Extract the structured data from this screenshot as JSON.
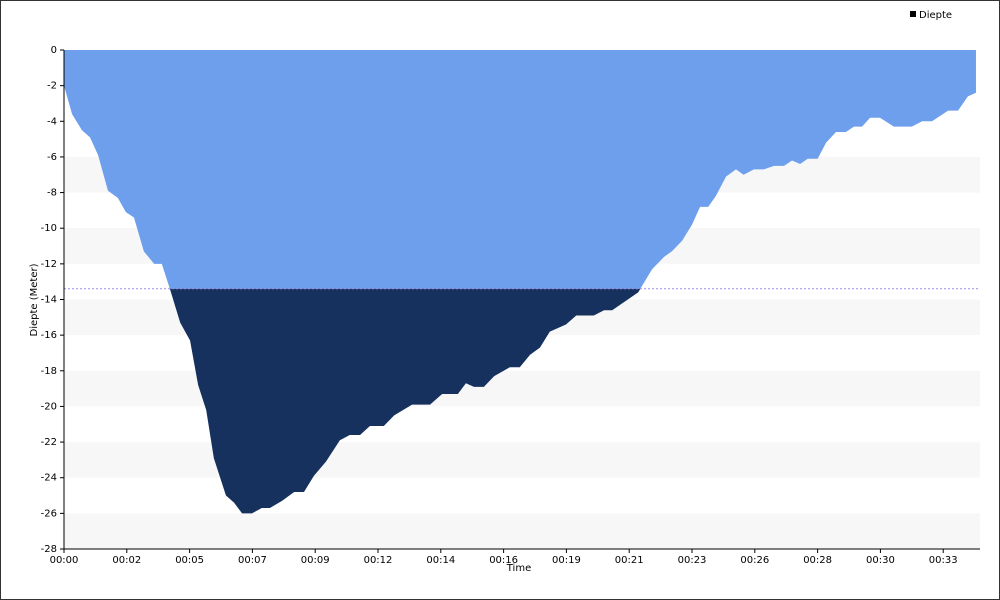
{
  "chart_data": {
    "type": "area",
    "x_label": "Time",
    "y_label": "Diepte (Meter)",
    "x": [
      0,
      18,
      40,
      58,
      76,
      98,
      120,
      138,
      156,
      178,
      201,
      218,
      236,
      259,
      281,
      299,
      317,
      334,
      361,
      379,
      397,
      419,
      441,
      459,
      486,
      513,
      535,
      557,
      584,
      615,
      637,
      660,
      682,
      713,
      736,
      776,
      816,
      843,
      878,
      896,
      914,
      936,
      959,
      994,
      1016,
      1039,
      1061,
      1083,
      1119,
      1142,
      1181,
      1204,
      1222,
      1280,
      1311,
      1338,
      1355,
      1378,
      1400,
      1418,
      1436,
      1453,
      1476,
      1498,
      1515,
      1538,
      1560,
      1583,
      1605,
      1623,
      1641,
      1658,
      1680,
      1699,
      1721,
      1743,
      1761,
      1779,
      1797,
      1819,
      1850,
      1890,
      1913,
      1935,
      1971,
      1993,
      2015,
      2033
    ],
    "series": [
      {
        "name": "Diepte",
        "color": "#6e9fec",
        "values": [
          -2,
          -3.6,
          -4.5,
          -4.9,
          -5.9,
          -7.9,
          -8.3,
          -9.1,
          -9.4,
          -11.3,
          -12,
          -12,
          -13.4,
          -15.3,
          -16.3,
          -18.8,
          -20.2,
          -22.9,
          -25,
          -25.4,
          -26,
          -26,
          -25.7,
          -25.7,
          -25.3,
          -24.8,
          -24.8,
          -23.9,
          -23.1,
          -21.9,
          -21.6,
          -21.6,
          -21.1,
          -21.1,
          -20.5,
          -19.9,
          -19.9,
          -19.3,
          -19.3,
          -18.7,
          -18.9,
          -18.9,
          -18.3,
          -17.8,
          -17.8,
          -17.1,
          -16.7,
          -15.8,
          -15.4,
          -14.9,
          -14.9,
          -14.6,
          -14.6,
          -13.6,
          -12.3,
          -11.6,
          -11.3,
          -10.7,
          -9.8,
          -8.8,
          -8.8,
          -8.2,
          -7.1,
          -6.7,
          -7,
          -6.7,
          -6.7,
          -6.5,
          -6.5,
          -6.2,
          -6.4,
          -6.1,
          -6.1,
          -5.2,
          -4.6,
          -4.6,
          -4.3,
          -4.3,
          -3.8,
          -3.8,
          -4.3,
          -4.3,
          -4,
          -4,
          -3.4,
          -3.4,
          -2.6,
          -2.4
        ]
      }
    ],
    "threshold": {
      "value": -13.4,
      "color": "#16315e",
      "line_color": "#9b8ce8"
    },
    "xlim": [
      0,
      2042
    ],
    "xticks": [
      {
        "value": 0,
        "label": "00:00"
      },
      {
        "value": 140,
        "label": "00:02"
      },
      {
        "value": 280,
        "label": "00:05"
      },
      {
        "value": 420,
        "label": "00:07"
      },
      {
        "value": 560,
        "label": "00:09"
      },
      {
        "value": 700,
        "label": "00:12"
      },
      {
        "value": 840,
        "label": "00:14"
      },
      {
        "value": 980,
        "label": "00:16"
      },
      {
        "value": 1120,
        "label": "00:19"
      },
      {
        "value": 1260,
        "label": "00:21"
      },
      {
        "value": 1400,
        "label": "00:23"
      },
      {
        "value": 1540,
        "label": "00:26"
      },
      {
        "value": 1680,
        "label": "00:28"
      },
      {
        "value": 1820,
        "label": "00:30"
      },
      {
        "value": 1960,
        "label": "00:33"
      }
    ],
    "ylim": [
      -28,
      0
    ],
    "yticks": [
      0,
      -2,
      -4,
      -6,
      -8,
      -10,
      -12,
      -14,
      -16,
      -18,
      -20,
      -22,
      -24,
      -26,
      -28
    ],
    "legend": "top-right"
  }
}
